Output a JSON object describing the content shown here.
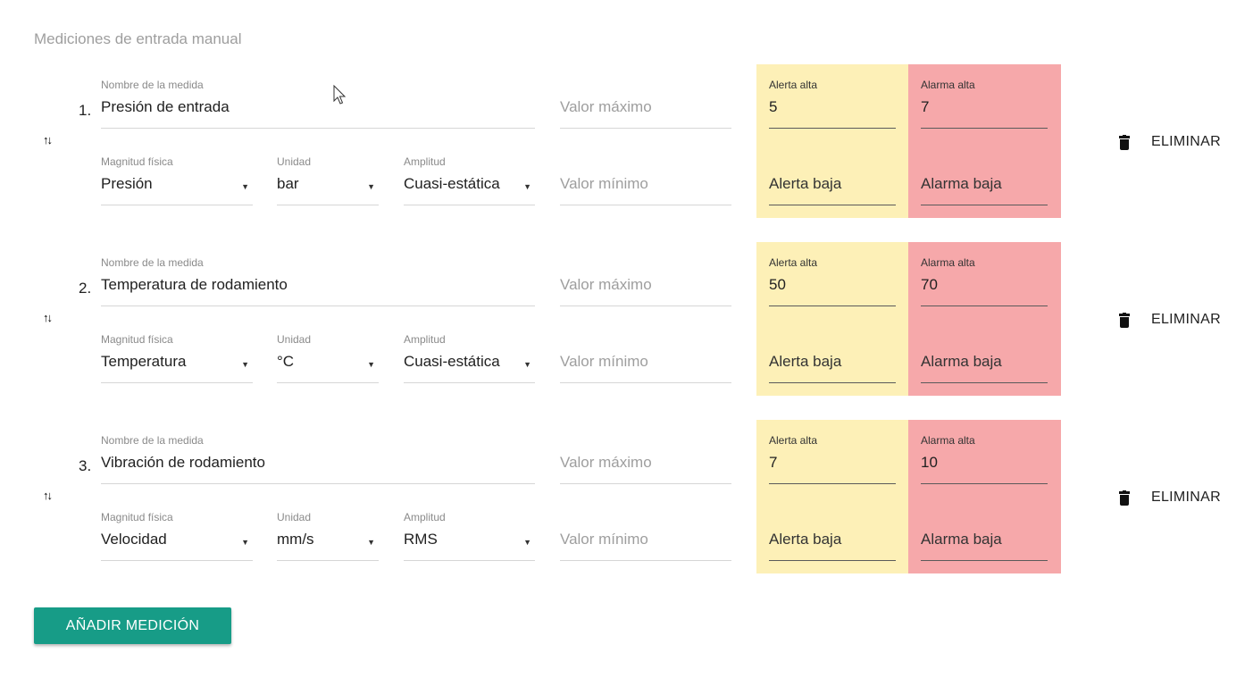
{
  "section": {
    "title": "Mediciones de entrada manual"
  },
  "labels": {
    "name": "Nombre de la medida",
    "magnitude": "Magnitud física",
    "unit": "Unidad",
    "amplitude": "Amplitud",
    "max_placeholder": "Valor máximo",
    "min_placeholder": "Valor mínimo",
    "alert_high": "Alerta alta",
    "alarm_high": "Alarma alta",
    "alert_low": "Alerta baja",
    "alarm_low": "Alarma baja",
    "delete": "ELIMINAR",
    "reorder": "↑↓",
    "dropdown_arrow": "▼"
  },
  "measurements": [
    {
      "index": "1.",
      "name": "Presión de entrada",
      "magnitude": "Presión",
      "unit": "bar",
      "amplitude": "Cuasi-estática",
      "alert_high": "5",
      "alarm_high": "7"
    },
    {
      "index": "2.",
      "name": "Temperatura de rodamiento",
      "magnitude": "Temperatura",
      "unit": "°C",
      "amplitude": "Cuasi-estática",
      "alert_high": "50",
      "alarm_high": "70"
    },
    {
      "index": "3.",
      "name": "Vibración de rodamiento",
      "magnitude": "Velocidad",
      "unit": "mm/s",
      "amplitude": "RMS",
      "alert_high": "7",
      "alarm_high": "10"
    }
  ],
  "add_button": {
    "label": "AÑADIR MEDICIÓN"
  },
  "colors": {
    "accent": "#179c87",
    "alert": "#fdf0b7",
    "alarm": "#f6a8aa"
  }
}
